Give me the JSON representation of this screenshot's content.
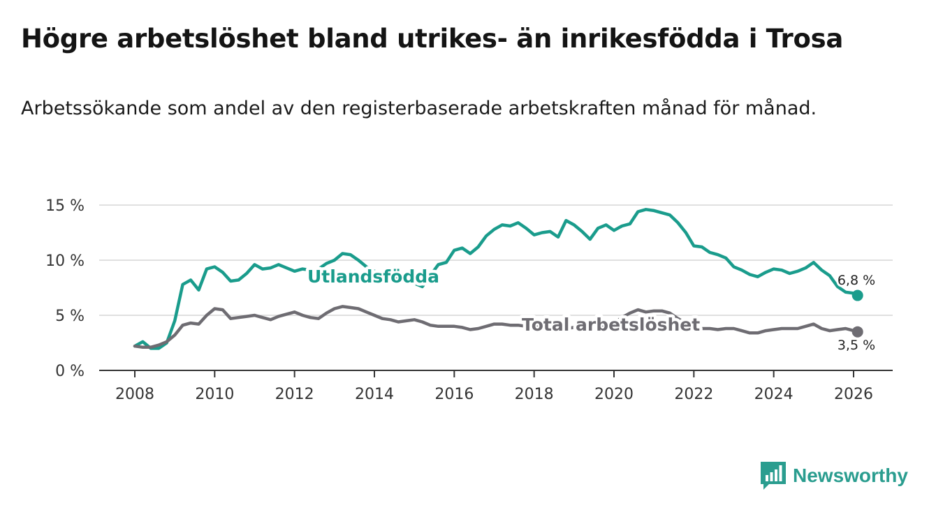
{
  "title": "Högre arbetslöshet bland utrikes- än inrikesfödda i Trosa",
  "subtitle": "Arbetssökande som andel av den registerbaserade arbetskraften månad för månad.",
  "brand": {
    "name": "Newsworthy",
    "icon": "newsworthy-logo-icon",
    "color": "#2a9d8f"
  },
  "chart_data": {
    "type": "line",
    "title": "Högre arbetslöshet bland utrikes- än inrikesfödda i Trosa",
    "xlabel": "",
    "ylabel": "",
    "xlim": [
      2007.5,
      2027.0
    ],
    "ylim": [
      0,
      15
    ],
    "x_ticks": [
      2008,
      2010,
      2012,
      2014,
      2016,
      2018,
      2020,
      2022,
      2024,
      2026
    ],
    "y_ticks": [
      0,
      5,
      10,
      15
    ],
    "y_tick_labels": [
      "0 %",
      "5 %",
      "10 %",
      "15 %"
    ],
    "grid": true,
    "series": [
      {
        "name": "Utlandsfödda",
        "color": "#1a9c8c",
        "end_label": "6,8 %",
        "x": [
          2008.0,
          2008.2,
          2008.4,
          2008.6,
          2008.8,
          2009.0,
          2009.2,
          2009.4,
          2009.6,
          2009.8,
          2010.0,
          2010.2,
          2010.4,
          2010.6,
          2010.8,
          2011.0,
          2011.2,
          2011.4,
          2011.6,
          2011.8,
          2012.0,
          2012.2,
          2012.4,
          2012.6,
          2012.8,
          2013.0,
          2013.2,
          2013.4,
          2013.6,
          2013.8,
          2014.0,
          2014.4,
          2014.8,
          2015.0,
          2015.2,
          2015.4,
          2015.6,
          2015.8,
          2016.0,
          2016.2,
          2016.4,
          2016.6,
          2016.8,
          2017.0,
          2017.2,
          2017.4,
          2017.6,
          2017.8,
          2018.0,
          2018.2,
          2018.4,
          2018.6,
          2018.8,
          2019.0,
          2019.2,
          2019.4,
          2019.6,
          2019.8,
          2020.0,
          2020.2,
          2020.4,
          2020.6,
          2020.8,
          2021.0,
          2021.2,
          2021.4,
          2021.6,
          2021.8,
          2022.0,
          2022.2,
          2022.4,
          2022.6,
          2022.8,
          2023.0,
          2023.2,
          2023.4,
          2023.6,
          2023.8,
          2024.0,
          2024.2,
          2024.4,
          2024.6,
          2024.8,
          2025.0,
          2025.2,
          2025.4,
          2025.6,
          2025.8,
          2026.0,
          2026.1
        ],
        "values": [
          2.2,
          2.6,
          2.0,
          2.0,
          2.5,
          4.5,
          7.8,
          8.2,
          7.3,
          9.2,
          9.4,
          8.9,
          8.1,
          8.2,
          8.8,
          9.6,
          9.2,
          9.3,
          9.6,
          9.3,
          9.0,
          9.2,
          9.1,
          9.2,
          9.7,
          10.0,
          10.6,
          10.5,
          10.0,
          9.4,
          9.0,
          8.6,
          8.2,
          7.9,
          7.6,
          8.6,
          9.6,
          9.8,
          10.9,
          11.1,
          10.6,
          11.2,
          12.2,
          12.8,
          13.2,
          13.1,
          13.4,
          12.9,
          12.3,
          12.5,
          12.6,
          12.1,
          13.6,
          13.2,
          12.6,
          11.9,
          12.9,
          13.2,
          12.7,
          13.1,
          13.3,
          14.4,
          14.6,
          14.5,
          14.3,
          14.1,
          13.4,
          12.5,
          11.3,
          11.2,
          10.7,
          10.5,
          10.2,
          9.4,
          9.1,
          8.7,
          8.5,
          8.9,
          9.2,
          9.1,
          8.8,
          9.0,
          9.3,
          9.8,
          9.1,
          8.6,
          7.6,
          7.1,
          7.0,
          6.8
        ]
      },
      {
        "name": "Total arbetslöshet",
        "color": "#6e6c72",
        "end_label": "3,5 %",
        "x": [
          2008.0,
          2008.2,
          2008.4,
          2008.6,
          2008.8,
          2009.0,
          2009.2,
          2009.4,
          2009.6,
          2009.8,
          2010.0,
          2010.2,
          2010.4,
          2010.6,
          2010.8,
          2011.0,
          2011.2,
          2011.4,
          2011.6,
          2011.8,
          2012.0,
          2012.2,
          2012.4,
          2012.6,
          2012.8,
          2013.0,
          2013.2,
          2013.4,
          2013.6,
          2013.8,
          2014.0,
          2014.2,
          2014.4,
          2014.6,
          2014.8,
          2015.0,
          2015.2,
          2015.4,
          2015.6,
          2015.8,
          2016.0,
          2016.2,
          2016.4,
          2016.6,
          2016.8,
          2017.0,
          2017.2,
          2017.4,
          2017.6,
          2017.8,
          2018.0,
          2018.2,
          2018.4,
          2018.6,
          2018.8,
          2019.0,
          2019.2,
          2019.4,
          2019.6,
          2019.8,
          2020.0,
          2020.2,
          2020.4,
          2020.6,
          2020.8,
          2021.0,
          2021.2,
          2021.4,
          2021.6,
          2021.8,
          2022.0,
          2022.2,
          2022.4,
          2022.6,
          2022.8,
          2023.0,
          2023.2,
          2023.4,
          2023.6,
          2023.8,
          2024.0,
          2024.2,
          2024.4,
          2024.6,
          2024.8,
          2025.0,
          2025.2,
          2025.4,
          2025.6,
          2025.8,
          2026.0,
          2026.1
        ],
        "values": [
          2.2,
          2.1,
          2.1,
          2.3,
          2.6,
          3.2,
          4.1,
          4.3,
          4.2,
          5.0,
          5.6,
          5.5,
          4.7,
          4.8,
          4.9,
          5.0,
          4.8,
          4.6,
          4.9,
          5.1,
          5.3,
          5.0,
          4.8,
          4.7,
          5.2,
          5.6,
          5.8,
          5.7,
          5.6,
          5.3,
          5.0,
          4.7,
          4.6,
          4.4,
          4.5,
          4.6,
          4.4,
          4.1,
          4.0,
          4.0,
          4.0,
          3.9,
          3.7,
          3.8,
          4.0,
          4.2,
          4.2,
          4.1,
          4.1,
          4.0,
          4.0,
          3.9,
          3.9,
          3.8,
          3.8,
          3.9,
          3.6,
          3.5,
          3.8,
          4.0,
          4.3,
          4.8,
          5.2,
          5.5,
          5.3,
          5.4,
          5.4,
          5.2,
          4.7,
          4.3,
          4.0,
          3.8,
          3.8,
          3.7,
          3.8,
          3.8,
          3.6,
          3.4,
          3.4,
          3.6,
          3.7,
          3.8,
          3.8,
          3.8,
          4.0,
          4.2,
          3.8,
          3.6,
          3.7,
          3.8,
          3.6,
          3.5
        ]
      }
    ]
  }
}
